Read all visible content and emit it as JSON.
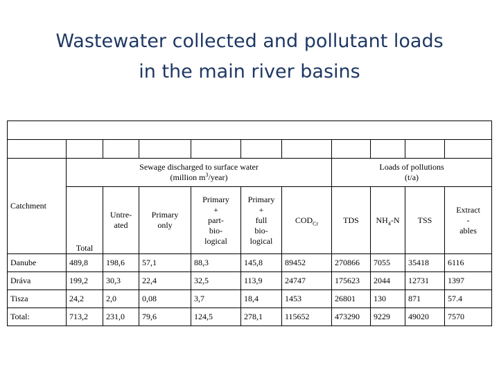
{
  "title": {
    "line1": "Wastewater collected and pollutant loads",
    "line2": "in the main river basins"
  },
  "table": {
    "header": {
      "group_sewage": "Sewage discharged to surface water (million m³/year)",
      "group_sewage_line1": "Sewage discharged to surface water",
      "group_sewage_line2_pre": "(million m",
      "group_sewage_sup": "3",
      "group_sewage_line2_post": "/year)",
      "group_loads_line1": "Loads of pollutions",
      "group_loads_line2": "(t/a)",
      "catchment": "Catchment",
      "total": "Total",
      "untreated_1": "Untre-",
      "untreated_2": "ated",
      "primary_only_1": "Primary",
      "primary_only_2": "only",
      "ppb_1": "Primary",
      "ppb_2": "+",
      "ppb_3": "part-",
      "ppb_4": "bio-",
      "ppb_5": "logical",
      "pfb_1": "Primary",
      "pfb_2": "+",
      "pfb_3": "full",
      "pfb_4": "bio-",
      "pfb_5": "logical",
      "cod_main": "COD",
      "cod_sub": "Cr",
      "tds": "TDS",
      "nh4_main": "NH",
      "nh4_sub": "4",
      "nh4_post": "-N",
      "tss": "TSS",
      "extract_1": "Extract",
      "extract_2": "-",
      "extract_3": "ables"
    },
    "rows": [
      {
        "catchment": "Danube",
        "cells": [
          "489,8",
          "198,6",
          "57,1",
          "88,3",
          "145,8",
          "89452",
          "270866",
          "7055",
          "35418",
          "6116"
        ]
      },
      {
        "catchment": "Dráva",
        "cells": [
          "199,2",
          "30,3",
          "22,4",
          "32,5",
          "113,9",
          "24747",
          "175623",
          "2044",
          "12731",
          "1397"
        ]
      },
      {
        "catchment": "Tisza",
        "cells": [
          "24,2",
          "2,0",
          "0,08",
          "3,7",
          "18,4",
          "1453",
          "26801",
          "130",
          "871",
          "57.4"
        ]
      },
      {
        "catchment": "Total:",
        "cells": [
          "713,2",
          "231,0",
          "79,6",
          "124,5",
          "278,1",
          "115652",
          "473290",
          "9229",
          "49020",
          "7570"
        ]
      }
    ]
  }
}
